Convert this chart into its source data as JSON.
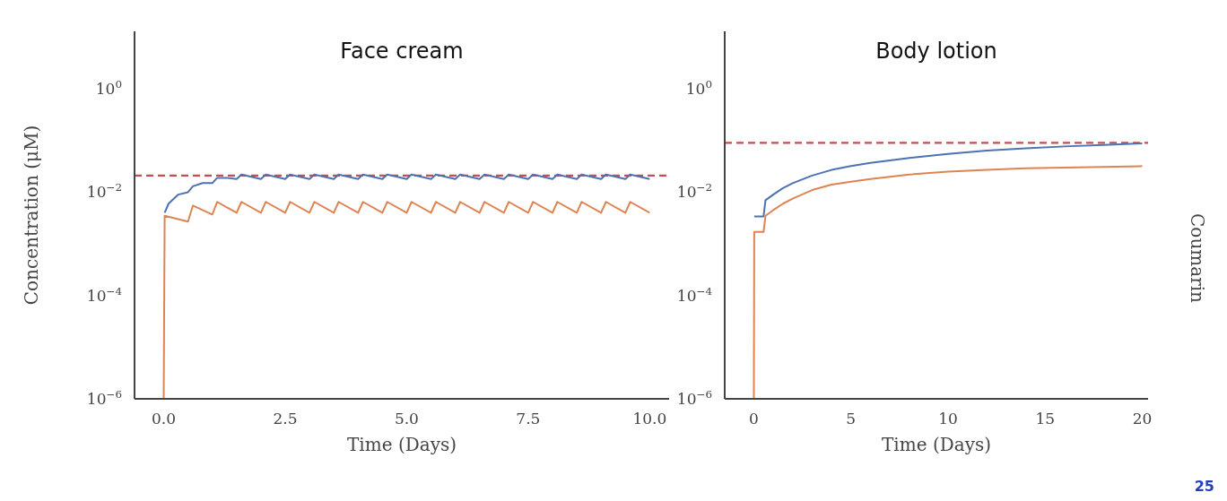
{
  "chart_data": [
    {
      "type": "line",
      "title": "Face cream",
      "xlabel": "Time (Days)",
      "ylabel": "Concentration (μM)",
      "log": "y",
      "xlim": [
        -0.6,
        10.4
      ],
      "xticks": [
        {
          "value": 0,
          "label": "0.0"
        },
        {
          "value": 2.5,
          "label": "2.5"
        },
        {
          "value": 5,
          "label": "5.0"
        },
        {
          "value": 7.5,
          "label": "7.5"
        },
        {
          "value": 10,
          "label": "10.0"
        }
      ],
      "ylim": [
        1e-06,
        13
      ],
      "yticks": [
        {
          "value": 1e-06,
          "label": "10$^{−6}$"
        },
        {
          "value": 0.0001,
          "label": "10$^{−4}$"
        },
        {
          "value": 0.01,
          "label": "10$^{−2}$"
        },
        {
          "value": 1,
          "label": "10$^{0}$"
        }
      ],
      "grid": false,
      "series": [
        {
          "color": "#4c72b0",
          "x": [
            0.02,
            0.1,
            0.3,
            0.5,
            0.6,
            0.8,
            1.0,
            1.1,
            1.3,
            1.5,
            1.6,
            2.0,
            2.1,
            2.5,
            2.6,
            3.0,
            3.1,
            3.5,
            3.6,
            4.0,
            4.1,
            4.5,
            4.6,
            5.0,
            5.1,
            5.5,
            5.6,
            6.0,
            6.1,
            6.5,
            6.6,
            7.0,
            7.1,
            7.5,
            7.6,
            8.0,
            8.1,
            8.5,
            8.6,
            9.0,
            9.1,
            9.5,
            9.6,
            10.0
          ],
          "values": [
            0.004,
            0.006,
            0.009,
            0.01,
            0.013,
            0.015,
            0.015,
            0.019,
            0.019,
            0.018,
            0.022,
            0.018,
            0.022,
            0.018,
            0.022,
            0.018,
            0.022,
            0.018,
            0.022,
            0.018,
            0.022,
            0.018,
            0.022,
            0.018,
            0.022,
            0.018,
            0.022,
            0.018,
            0.022,
            0.018,
            0.022,
            0.018,
            0.022,
            0.018,
            0.022,
            0.018,
            0.022,
            0.018,
            0.022,
            0.018,
            0.022,
            0.018,
            0.022,
            0.018
          ]
        },
        {
          "color": "#dd8452",
          "x": [
            0,
            0.02,
            0.5,
            0.6,
            1.0,
            1.1,
            1.5,
            1.6,
            2.0,
            2.1,
            2.5,
            2.6,
            3.0,
            3.1,
            3.5,
            3.6,
            4.0,
            4.1,
            4.5,
            4.6,
            5.0,
            5.1,
            5.5,
            5.6,
            6.0,
            6.1,
            6.5,
            6.6,
            7.0,
            7.1,
            7.5,
            7.6,
            8.0,
            8.1,
            8.5,
            8.6,
            9.0,
            9.1,
            9.5,
            9.6,
            10.0
          ],
          "values": [
            1e-06,
            0.0035,
            0.0027,
            0.0055,
            0.0037,
            0.0065,
            0.004,
            0.0065,
            0.004,
            0.0065,
            0.004,
            0.0065,
            0.004,
            0.0065,
            0.004,
            0.0065,
            0.004,
            0.0065,
            0.004,
            0.0065,
            0.004,
            0.0065,
            0.004,
            0.0065,
            0.004,
            0.0065,
            0.004,
            0.0065,
            0.004,
            0.0065,
            0.004,
            0.0065,
            0.004,
            0.0065,
            0.004,
            0.0065,
            0.004,
            0.0065,
            0.004,
            0.0065,
            0.004
          ]
        }
      ],
      "ref_lines": [
        {
          "axis": "y",
          "value": 0.021,
          "color": "#c44e52",
          "line_style": "dashed"
        }
      ]
    },
    {
      "type": "line",
      "title": "Body lotion",
      "xlabel": "Time (Days)",
      "log": "y",
      "xlim": [
        -1.5,
        20.3
      ],
      "xticks": [
        0,
        5,
        10,
        15,
        20
      ],
      "ylim": [
        1e-06,
        13
      ],
      "yticks": [
        {
          "value": 1e-06,
          "label": "10$^{−6}$"
        },
        {
          "value": 0.0001,
          "label": "10$^{−4}$"
        },
        {
          "value": 0.01,
          "label": "10$^{−2}$"
        },
        {
          "value": 1,
          "label": "10$^{0}$"
        }
      ],
      "grid": false,
      "series": [
        {
          "color": "#4c72b0",
          "x": [
            0.02,
            0.5,
            0.6,
            1.0,
            1.5,
            2,
            3,
            4,
            5,
            6,
            8,
            10,
            12,
            14,
            16,
            18,
            20
          ],
          "values": [
            0.0034,
            0.0034,
            0.007,
            0.009,
            0.012,
            0.015,
            0.021,
            0.027,
            0.032,
            0.037,
            0.046,
            0.055,
            0.064,
            0.071,
            0.077,
            0.082,
            0.088
          ]
        },
        {
          "color": "#dd8452",
          "x": [
            0,
            0.02,
            0.5,
            0.6,
            1.0,
            1.5,
            2,
            3,
            4,
            5,
            6,
            8,
            10,
            12,
            14,
            16,
            18,
            20
          ],
          "values": [
            1e-06,
            0.0017,
            0.0017,
            0.0035,
            0.0045,
            0.006,
            0.0075,
            0.011,
            0.014,
            0.016,
            0.018,
            0.022,
            0.025,
            0.027,
            0.029,
            0.03,
            0.031,
            0.032
          ]
        }
      ],
      "ref_lines": [
        {
          "axis": "y",
          "value": 0.09,
          "color": "#c44e52",
          "line_style": "dashed"
        }
      ],
      "annotations": [
        "Coumarin",
        "25"
      ]
    }
  ]
}
